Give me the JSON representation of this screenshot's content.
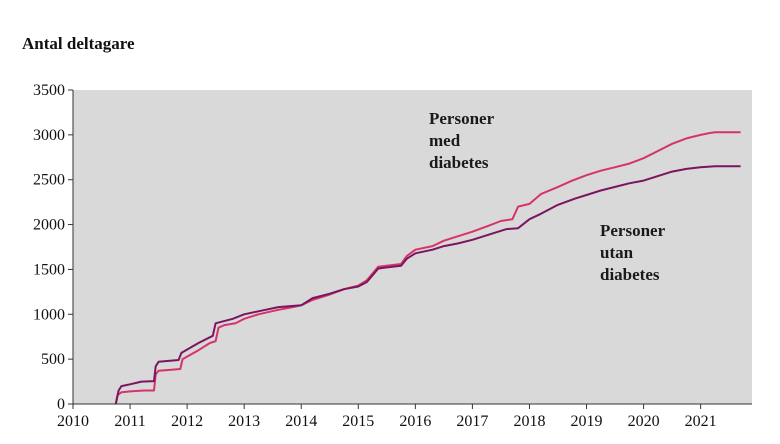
{
  "chart_data": {
    "type": "line",
    "title": "",
    "ylabel": "Antal deltagare",
    "xlabel": "",
    "xlim": [
      2010,
      2021.9
    ],
    "ylim": [
      0,
      3500
    ],
    "x_ticks": [
      2010,
      2011,
      2012,
      2013,
      2014,
      2015,
      2016,
      2017,
      2018,
      2019,
      2020,
      2021
    ],
    "y_ticks": [
      0,
      500,
      1000,
      1500,
      2000,
      2500,
      3000,
      3500
    ],
    "grid": false,
    "legend": "none",
    "background_color": "#d9d9d9",
    "annotations": [
      {
        "lines": [
          "Personer",
          "med",
          "diabetes"
        ],
        "series_index": 0
      },
      {
        "lines": [
          "Personer",
          "utan",
          "diabetes"
        ],
        "series_index": 1
      }
    ],
    "series": [
      {
        "color": "#d6336c",
        "x": [
          2010.75,
          2010.78,
          2010.85,
          2011.0,
          2011.1,
          2011.25,
          2011.42,
          2011.45,
          2011.5,
          2011.7,
          2011.88,
          2011.92,
          2012.2,
          2012.4,
          2012.5,
          2012.55,
          2012.65,
          2012.85,
          2013.0,
          2013.25,
          2013.6,
          2013.85,
          2014.0,
          2014.2,
          2014.5,
          2014.75,
          2015.0,
          2015.15,
          2015.35,
          2015.75,
          2015.85,
          2016.0,
          2016.3,
          2016.5,
          2016.75,
          2017.0,
          2017.25,
          2017.5,
          2017.7,
          2017.8,
          2018.0,
          2018.2,
          2018.5,
          2018.75,
          2019.0,
          2019.25,
          2019.5,
          2019.75,
          2020.0,
          2020.25,
          2020.5,
          2020.75,
          2021.0,
          2021.15,
          2021.25,
          2021.7
        ],
        "y": [
          0,
          100,
          130,
          140,
          145,
          150,
          150,
          330,
          370,
          380,
          390,
          500,
          600,
          680,
          700,
          850,
          880,
          900,
          950,
          1000,
          1050,
          1080,
          1100,
          1160,
          1220,
          1280,
          1320,
          1380,
          1530,
          1560,
          1650,
          1720,
          1760,
          1820,
          1870,
          1920,
          1980,
          2040,
          2060,
          2200,
          2230,
          2340,
          2420,
          2490,
          2550,
          2600,
          2640,
          2680,
          2740,
          2820,
          2900,
          2960,
          3000,
          3020,
          3030,
          3030
        ]
      },
      {
        "color": "#7a1560",
        "x": [
          2010.75,
          2010.8,
          2010.85,
          2011.0,
          2011.2,
          2011.42,
          2011.45,
          2011.5,
          2011.85,
          2011.9,
          2012.2,
          2012.45,
          2012.5,
          2012.8,
          2013.0,
          2013.3,
          2013.6,
          2014.0,
          2014.2,
          2014.5,
          2014.75,
          2015.0,
          2015.15,
          2015.35,
          2015.75,
          2015.85,
          2016.0,
          2016.3,
          2016.5,
          2016.75,
          2017.0,
          2017.25,
          2017.6,
          2017.8,
          2018.0,
          2018.2,
          2018.5,
          2018.8,
          2019.0,
          2019.25,
          2019.5,
          2019.75,
          2020.0,
          2020.25,
          2020.5,
          2020.75,
          2021.0,
          2021.25,
          2021.7
        ],
        "y": [
          0,
          150,
          200,
          220,
          250,
          255,
          420,
          470,
          490,
          570,
          680,
          760,
          900,
          950,
          1000,
          1040,
          1080,
          1100,
          1180,
          1230,
          1280,
          1310,
          1360,
          1510,
          1540,
          1620,
          1680,
          1720,
          1760,
          1790,
          1830,
          1880,
          1950,
          1960,
          2060,
          2120,
          2220,
          2290,
          2330,
          2380,
          2420,
          2460,
          2490,
          2540,
          2590,
          2620,
          2640,
          2650,
          2650
        ]
      }
    ]
  }
}
